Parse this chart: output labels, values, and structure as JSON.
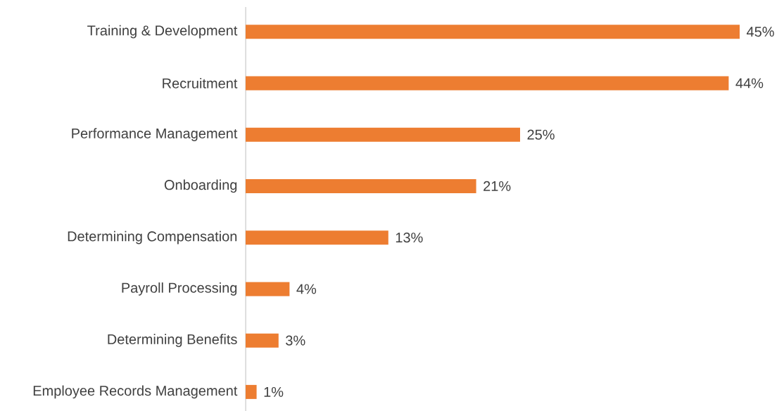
{
  "chart_data": {
    "type": "bar",
    "orientation": "horizontal",
    "categories": [
      "Training & Development",
      "Recruitment",
      "Performance Management",
      "Onboarding",
      "Determining Compensation",
      "Payroll Processing",
      "Determining Benefits",
      "Employee Records Management"
    ],
    "values": [
      45,
      44,
      25,
      21,
      13,
      4,
      3,
      1
    ],
    "value_labels": [
      "45%",
      "44%",
      "25%",
      "21%",
      "13%",
      "4%",
      "3%",
      "1%"
    ],
    "color": "#ed7d31"
  }
}
